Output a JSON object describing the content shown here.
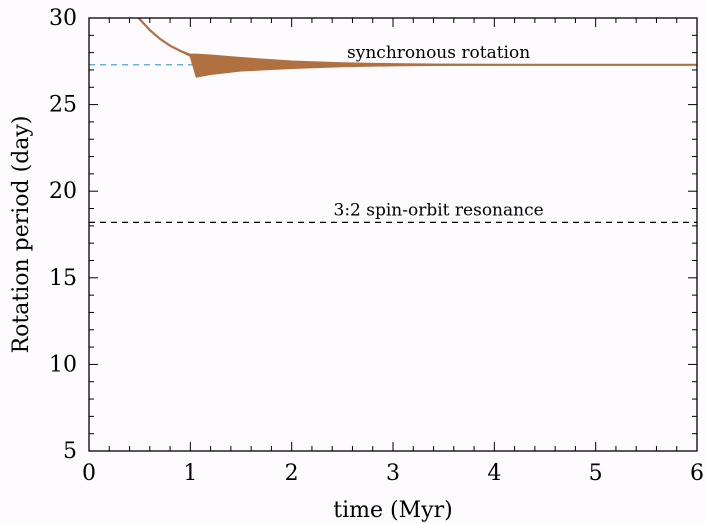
{
  "chart_data": {
    "type": "line",
    "title": "",
    "xlabel": "time (Myr)",
    "ylabel": "Rotation period (day)",
    "xlim": [
      0,
      6
    ],
    "ylim": [
      5,
      30
    ],
    "xticks": [
      0,
      1,
      2,
      3,
      4,
      5,
      6
    ],
    "yticks": [
      5,
      10,
      15,
      20,
      25,
      30
    ],
    "grid": false,
    "legend": "none",
    "series": [
      {
        "color": "#b07040",
        "style": "oscillating band",
        "x": [
          0.49,
          0.6,
          0.7,
          0.8,
          0.9,
          1.0,
          1.06,
          1.2,
          1.5,
          2.0,
          2.5,
          3.0,
          3.5,
          4.0,
          5.0,
          6.0
        ],
        "y_center": [
          30.0,
          29.3,
          28.8,
          28.4,
          28.1,
          27.85,
          27.6,
          27.35,
          27.3,
          27.3,
          27.3,
          27.3,
          27.3,
          27.3,
          27.3,
          27.3
        ],
        "y_upper": [
          30.0,
          29.3,
          28.8,
          28.4,
          28.1,
          27.9,
          27.9,
          27.85,
          27.7,
          27.5,
          27.4,
          27.35,
          27.32,
          27.3,
          27.3,
          27.3
        ],
        "y_lower": [
          30.0,
          29.3,
          28.8,
          28.4,
          28.1,
          27.8,
          26.6,
          26.75,
          26.95,
          27.1,
          27.2,
          27.25,
          27.28,
          27.3,
          27.3,
          27.3
        ]
      }
    ],
    "reference_lines": [
      {
        "y": 27.3,
        "label": "synchronous rotation",
        "color": "#4fa6d6",
        "style": "dashed",
        "label_x": 3.45
      },
      {
        "y": 18.2,
        "label": "3:2 spin-orbit resonance",
        "color": "#000000",
        "style": "dashed",
        "label_x": 3.45
      }
    ]
  }
}
